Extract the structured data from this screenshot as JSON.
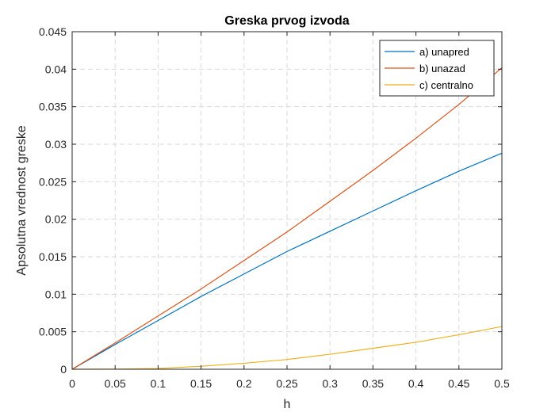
{
  "chart_data": {
    "type": "line",
    "title": "Greska prvog izvoda",
    "xlabel": "h",
    "ylabel": "Apsolutna vrednost greske",
    "xlim": [
      0,
      0.5
    ],
    "ylim": [
      0,
      0.045
    ],
    "xticks": [
      "0",
      "0.05",
      "0.1",
      "0.15",
      "0.2",
      "0.25",
      "0.3",
      "0.35",
      "0.4",
      "0.45",
      "0.5"
    ],
    "yticks": [
      "0",
      "0.005",
      "0.01",
      "0.015",
      "0.02",
      "0.025",
      "0.03",
      "0.035",
      "0.04",
      "0.045"
    ],
    "grid": true,
    "legend_position": "top-right",
    "x": [
      0,
      0.05,
      0.1,
      0.15,
      0.2,
      0.25,
      0.3,
      0.35,
      0.4,
      0.45,
      0.5
    ],
    "series": [
      {
        "name": "a) unapred",
        "color": "#0072BD",
        "values": [
          0,
          0.0033,
          0.0065,
          0.0097,
          0.0127,
          0.0157,
          0.0184,
          0.0211,
          0.0238,
          0.0264,
          0.0288
        ]
      },
      {
        "name": "b) unazad",
        "color": "#D95319",
        "values": [
          0,
          0.0035,
          0.0071,
          0.0107,
          0.0145,
          0.0183,
          0.0224,
          0.0265,
          0.0308,
          0.0353,
          0.0402
        ]
      },
      {
        "name": "c) centralno",
        "color": "#EDB120",
        "values": [
          0,
          2e-05,
          0.0001,
          0.0004,
          0.0008,
          0.0013,
          0.002,
          0.0028,
          0.0036,
          0.0046,
          0.0057
        ]
      }
    ]
  }
}
